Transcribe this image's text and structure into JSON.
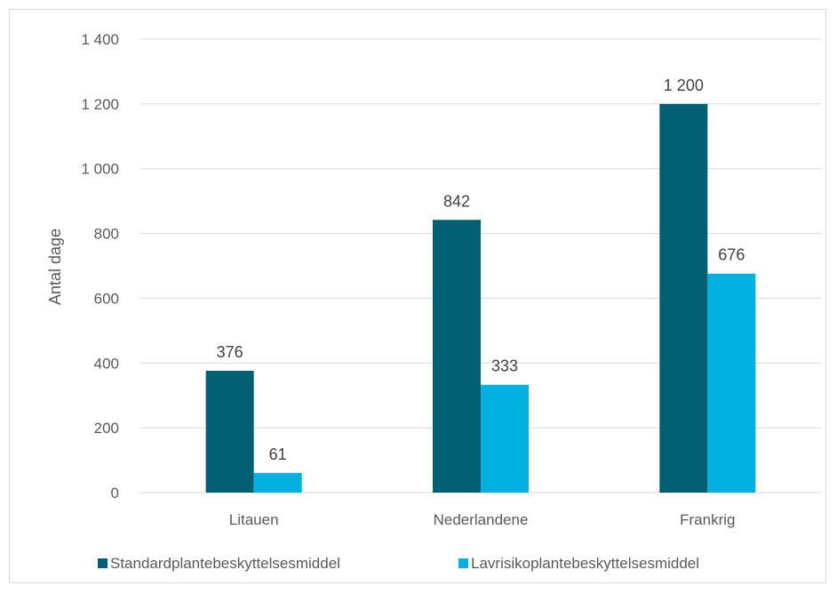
{
  "chart_data": {
    "type": "bar",
    "categories": [
      "Litauen",
      "Nederlandene",
      "Frankrig"
    ],
    "series": [
      {
        "name": "Standardplantebeskyttelsesmiddel",
        "values": [
          376,
          842,
          1200
        ],
        "labels": [
          "376",
          "842",
          "1 200"
        ],
        "color": "#005f73"
      },
      {
        "name": "Lavrisikoplantebeskyttelsesmiddel",
        "values": [
          61,
          333,
          676
        ],
        "labels": [
          "61",
          "333",
          "676"
        ],
        "color": "#00b0e0"
      }
    ],
    "ylabel": "Antal dage",
    "xlabel": "",
    "ylim": [
      0,
      1400
    ],
    "yticks": [
      0,
      200,
      400,
      600,
      800,
      1000,
      1200,
      1400
    ],
    "ytick_labels": [
      "0",
      "200",
      "400",
      "600",
      "800",
      "1 000",
      "1 200",
      "1 400"
    ],
    "grid": true,
    "legend": "bottom"
  }
}
